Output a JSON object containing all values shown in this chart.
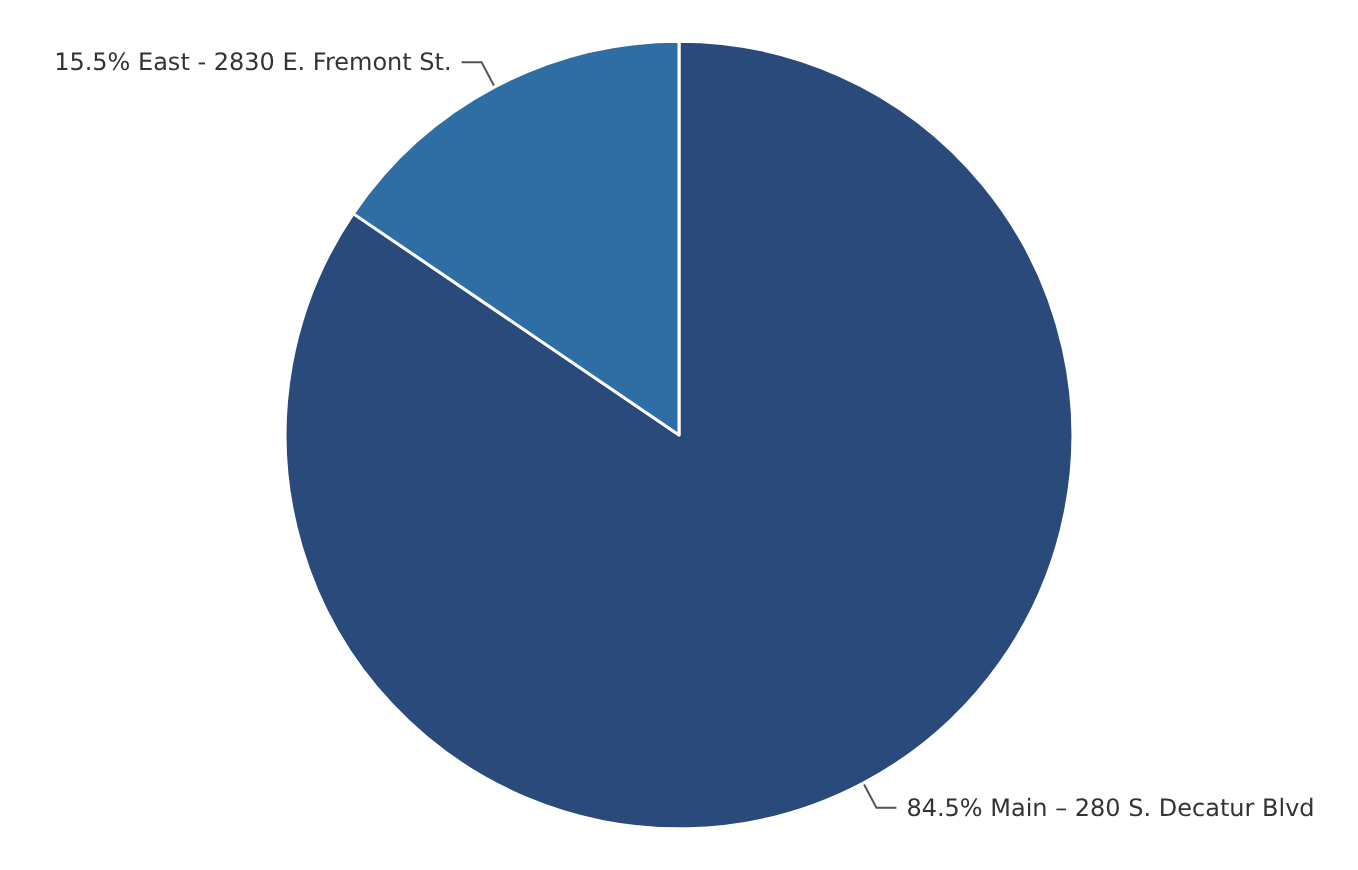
{
  "chart_data": {
    "type": "pie",
    "categories": [
      "Main – 280 S. Decatur Blvd",
      "East - 2830 E. Fremont St."
    ],
    "values": [
      84.5,
      15.5
    ],
    "value_labels": [
      "84.5%",
      "15.5%"
    ],
    "colors": [
      "#2a4a7c",
      "#2f6ea5"
    ],
    "legend": false
  }
}
